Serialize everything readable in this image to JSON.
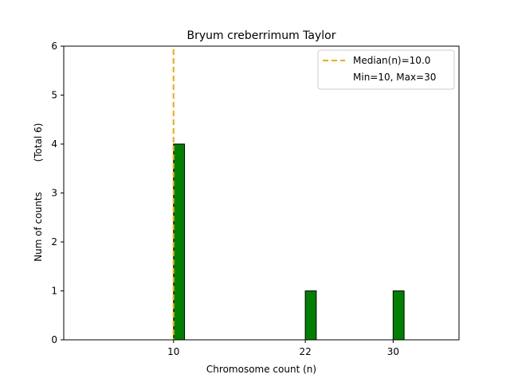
{
  "chart_data": {
    "type": "bar",
    "title": "Bryum creberrimum Taylor",
    "xlabel": "Chromosome count (n)",
    "ylabel": "Num of counts",
    "ylabel_extra": "(Total 6)",
    "x": [
      10,
      22,
      30
    ],
    "values": [
      4,
      1,
      1
    ],
    "xlim": [
      0,
      36
    ],
    "ylim": [
      0,
      6
    ],
    "xticks": [
      10,
      22,
      30
    ],
    "yticks": [
      0,
      1,
      2,
      3,
      4,
      5,
      6
    ],
    "median": 10.0,
    "bar_color": "#008000",
    "median_color": "#ffa500",
    "legend": {
      "position": "top-right",
      "entries": [
        "Median(n)=10.0",
        "Min=10, Max=30"
      ]
    },
    "grid": false
  }
}
